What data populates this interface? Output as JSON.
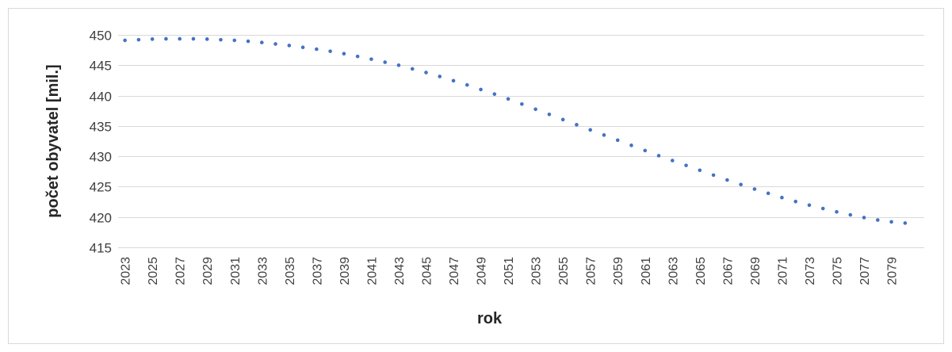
{
  "chart_data": {
    "type": "scatter",
    "title": "",
    "xlabel": "rok",
    "ylabel": "počet obyvatel [mil.]",
    "ylim": [
      415,
      450
    ],
    "yticks": [
      415,
      420,
      425,
      430,
      435,
      440,
      445,
      450
    ],
    "xlim": [
      2023,
      2080
    ],
    "xticks": [
      2023,
      2025,
      2027,
      2029,
      2031,
      2033,
      2035,
      2037,
      2039,
      2041,
      2043,
      2045,
      2047,
      2049,
      2051,
      2053,
      2055,
      2057,
      2059,
      2061,
      2063,
      2065,
      2067,
      2069,
      2071,
      2073,
      2075,
      2077,
      2079
    ],
    "grid": true,
    "legend": "none",
    "series_color": "#4472c4",
    "x": [
      2023,
      2024,
      2025,
      2026,
      2027,
      2028,
      2029,
      2030,
      2031,
      2032,
      2033,
      2034,
      2035,
      2036,
      2037,
      2038,
      2039,
      2040,
      2041,
      2042,
      2043,
      2044,
      2045,
      2046,
      2047,
      2048,
      2049,
      2050,
      2051,
      2052,
      2053,
      2054,
      2055,
      2056,
      2057,
      2058,
      2059,
      2060,
      2061,
      2062,
      2063,
      2064,
      2065,
      2066,
      2067,
      2068,
      2069,
      2070,
      2071,
      2072,
      2073,
      2074,
      2075,
      2076,
      2077,
      2078,
      2079,
      2080
    ],
    "y": [
      449.1,
      449.2,
      449.3,
      449.35,
      449.35,
      449.35,
      449.3,
      449.2,
      449.1,
      448.95,
      448.75,
      448.5,
      448.25,
      447.95,
      447.65,
      447.3,
      446.9,
      446.45,
      446.0,
      445.5,
      445.0,
      444.4,
      443.8,
      443.15,
      442.45,
      441.75,
      441.0,
      440.25,
      439.45,
      438.6,
      437.75,
      436.9,
      436.05,
      435.2,
      434.35,
      433.5,
      432.65,
      431.8,
      430.95,
      430.1,
      429.3,
      428.5,
      427.7,
      426.9,
      426.1,
      425.35,
      424.6,
      423.9,
      423.2,
      422.55,
      421.95,
      421.4,
      420.85,
      420.35,
      419.9,
      419.5,
      419.2,
      419.0
    ]
  }
}
